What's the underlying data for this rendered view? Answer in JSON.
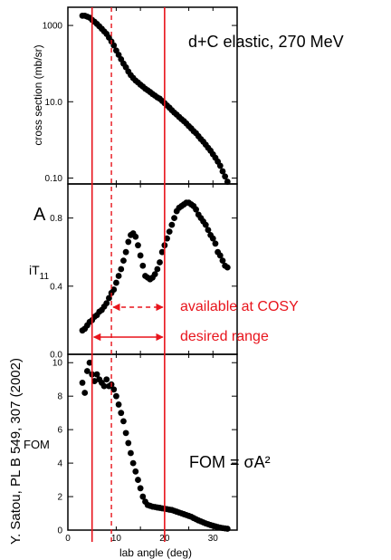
{
  "chart_data": [
    {
      "type": "scatter",
      "panel": "cross-section",
      "title": "d+C elastic, 270 MeV",
      "ylabel": "cross section (mb/sr)",
      "yscale": "log",
      "xlim": [
        0,
        35
      ],
      "ylim": [
        0.07,
        3000
      ],
      "yticks": [
        {
          "value": 0.1,
          "label": "0.10"
        },
        {
          "value": 10,
          "label": "10.0"
        },
        {
          "value": 1000,
          "label": "1000"
        }
      ],
      "x": [
        3,
        3.5,
        4,
        4.5,
        5,
        5.5,
        6,
        6.5,
        7,
        7.5,
        8,
        8.5,
        9,
        9.5,
        10,
        10.5,
        11,
        11.5,
        12,
        12.5,
        13,
        13.5,
        14,
        14.5,
        15,
        15.5,
        16,
        16.5,
        17,
        17.5,
        18,
        18.5,
        19,
        19.5,
        20,
        20.5,
        21,
        21.5,
        22,
        22.5,
        23,
        23.5,
        24,
        24.5,
        25,
        25.5,
        26,
        26.5,
        27,
        27.5,
        28,
        28.5,
        29,
        29.5,
        30,
        30.5,
        31,
        31.5,
        32,
        32.5,
        33
      ],
      "y": [
        1800,
        1800,
        1700,
        1600,
        1400,
        1250,
        1100,
        950,
        820,
        700,
        600,
        480,
        380,
        300,
        220,
        170,
        130,
        100,
        80,
        62,
        50,
        42,
        36,
        32,
        28,
        25,
        22,
        20,
        18,
        16,
        14.5,
        13,
        12,
        10.5,
        9.2,
        8,
        7,
        6,
        5.2,
        4.6,
        4,
        3.5,
        3.1,
        2.7,
        2.3,
        2,
        1.7,
        1.5,
        1.25,
        1.05,
        0.9,
        0.75,
        0.62,
        0.52,
        0.42,
        0.34,
        0.27,
        0.21,
        0.15,
        0.11,
        0.08
      ],
      "grid": false
    },
    {
      "type": "scatter",
      "panel": "analyzing-power",
      "ylabel_main": "A",
      "ylabel_sub": "iT",
      "ylabel_subscript": "11",
      "xlim": [
        0,
        35
      ],
      "ylim": [
        0,
        1.0
      ],
      "yticks": [
        {
          "value": 0.0,
          "label": "0.0"
        },
        {
          "value": 0.4,
          "label": "0.4"
        },
        {
          "value": 0.8,
          "label": "0.8"
        }
      ],
      "x": [
        3,
        3.5,
        4,
        4.5,
        5,
        5.5,
        6,
        6.5,
        7,
        7.5,
        8,
        8.5,
        9,
        9.5,
        10,
        10.5,
        11,
        11.5,
        12,
        12.5,
        13,
        13.5,
        14,
        14.5,
        15,
        15.5,
        16,
        16.5,
        17,
        17.5,
        18,
        18.5,
        19,
        19.5,
        20,
        20.5,
        21,
        21.5,
        22,
        22.5,
        23,
        23.5,
        24,
        24.5,
        25,
        25.5,
        26,
        26.5,
        27,
        27.5,
        28,
        28.5,
        29,
        29.5,
        30,
        30.5,
        31,
        31.5,
        32,
        32.5,
        33
      ],
      "y": [
        0.14,
        0.15,
        0.17,
        0.19,
        0.2,
        0.22,
        0.23,
        0.25,
        0.26,
        0.28,
        0.3,
        0.33,
        0.36,
        0.38,
        0.42,
        0.46,
        0.5,
        0.55,
        0.6,
        0.66,
        0.7,
        0.71,
        0.69,
        0.64,
        0.58,
        0.52,
        0.46,
        0.45,
        0.44,
        0.45,
        0.47,
        0.5,
        0.54,
        0.6,
        0.64,
        0.68,
        0.72,
        0.76,
        0.8,
        0.84,
        0.86,
        0.87,
        0.88,
        0.89,
        0.89,
        0.88,
        0.87,
        0.85,
        0.82,
        0.8,
        0.78,
        0.76,
        0.73,
        0.7,
        0.68,
        0.65,
        0.6,
        0.58,
        0.55,
        0.52,
        0.51
      ],
      "grid": false
    },
    {
      "type": "scatter",
      "panel": "figure-of-merit",
      "ylabel": "FOM",
      "xlabel": "lab angle (deg)",
      "equation": "FOM = σA²",
      "xlim": [
        0,
        35
      ],
      "ylim": [
        0,
        10.5
      ],
      "xticks": [
        0,
        10,
        20,
        30
      ],
      "yticks": [
        0,
        2,
        4,
        6,
        8,
        10
      ],
      "x": [
        3,
        3.5,
        4,
        4.5,
        5,
        5.5,
        6,
        6.5,
        7,
        7.5,
        8,
        8.5,
        9,
        9.5,
        10,
        10.5,
        11,
        11.5,
        12,
        12.5,
        13,
        13.5,
        14,
        14.5,
        15,
        15.5,
        16,
        16.5,
        17,
        17.5,
        18,
        18.5,
        19,
        19.5,
        20,
        20.5,
        21,
        21.5,
        22,
        22.5,
        23,
        23.5,
        24,
        24.5,
        25,
        25.5,
        26,
        26.5,
        27,
        27.5,
        28,
        28.5,
        29,
        29.5,
        30,
        30.5,
        31,
        31.5,
        32,
        32.5,
        33
      ],
      "y": [
        8.8,
        8.2,
        9.5,
        10.0,
        9.3,
        8.9,
        9.3,
        9.0,
        8.8,
        8.6,
        9.0,
        8.6,
        8.7,
        8.4,
        8.0,
        7.5,
        7.0,
        6.5,
        5.8,
        5.2,
        4.6,
        4.0,
        3.5,
        3.0,
        2.5,
        2.0,
        1.7,
        1.5,
        1.45,
        1.4,
        1.38,
        1.35,
        1.33,
        1.3,
        1.28,
        1.25,
        1.22,
        1.2,
        1.15,
        1.1,
        1.05,
        1.0,
        0.95,
        0.9,
        0.85,
        0.8,
        0.72,
        0.65,
        0.58,
        0.52,
        0.46,
        0.4,
        0.35,
        0.3,
        0.26,
        0.22,
        0.18,
        0.15,
        0.12,
        0.1,
        0.08
      ],
      "grid": false
    }
  ],
  "markers": {
    "solid_lines_deg": [
      5,
      20
    ],
    "dashed_line_deg": 9,
    "color": "#e8141c"
  },
  "annotations": {
    "available": "available at COSY",
    "desired": "desired range",
    "credit": "Y. Satou, PL B 549, 307 (2002)",
    "xlabel": "lab angle  (deg)"
  },
  "colors": {
    "points": "#000000",
    "accent": "#e8141c"
  }
}
